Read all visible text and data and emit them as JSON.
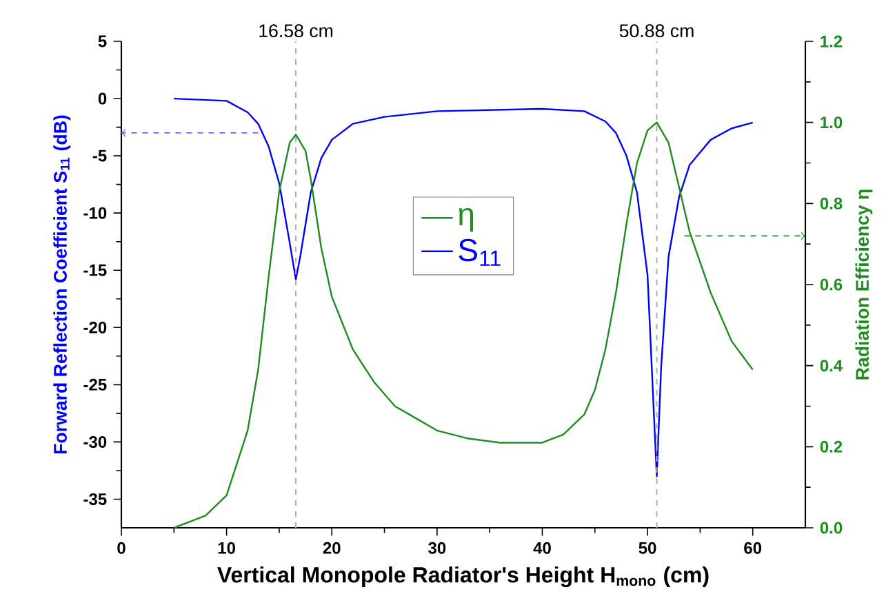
{
  "chart_data": {
    "type": "line",
    "xlabel": "Vertical Monopole Radiator's Height H$_{mono}$ (cm)",
    "ylabel": "Forward Reflection Coefficient S$_{11}$ (dB)",
    "y2label": "Radiation Efficiency η",
    "xlim": [
      0,
      65
    ],
    "xticks": [
      0,
      10,
      20,
      30,
      40,
      50,
      60
    ],
    "ylim": [
      -37.5,
      5
    ],
    "yticks": [
      -35,
      -30,
      -25,
      -20,
      -15,
      -10,
      -5,
      0,
      5
    ],
    "y2lim": [
      0,
      1.2
    ],
    "y2ticks": [
      {
        "value": 0,
        "label": "0.0"
      },
      {
        "value": 0.2,
        "label": "0.2"
      },
      {
        "value": 0.4,
        "label": "0.4"
      },
      {
        "value": 0.6,
        "label": "0.6"
      },
      {
        "value": 0.8,
        "label": "0.8"
      },
      {
        "value": 1,
        "label": "1.0"
      },
      {
        "value": 1.2,
        "label": "1.2"
      }
    ],
    "legend": "center",
    "grid": false,
    "ref_lines": [
      {
        "axis": "x",
        "value": 16.58,
        "label": "16.58 cm",
        "color": "#b0b0b0",
        "line_style": "dashed"
      },
      {
        "axis": "x",
        "value": 50.88,
        "label": "50.88 cm",
        "color": "#b0b0b0",
        "line_style": "dashed"
      }
    ],
    "series": [
      {
        "name": "η",
        "color": "#1e8c1e",
        "axis": "y2",
        "x": [
          5,
          8,
          10,
          12,
          13,
          14,
          15,
          16,
          16.58,
          17.5,
          18,
          19,
          20,
          22,
          24,
          26,
          28,
          30,
          33,
          36,
          38,
          40,
          42,
          44,
          45,
          46,
          47,
          48,
          49,
          50,
          50.88,
          52,
          53,
          54,
          56,
          58,
          60
        ],
        "values": [
          0.0,
          0.03,
          0.08,
          0.24,
          0.39,
          0.62,
          0.83,
          0.95,
          0.97,
          0.93,
          0.86,
          0.69,
          0.57,
          0.44,
          0.36,
          0.3,
          0.27,
          0.24,
          0.22,
          0.21,
          0.21,
          0.21,
          0.23,
          0.28,
          0.34,
          0.44,
          0.58,
          0.75,
          0.9,
          0.98,
          1.0,
          0.95,
          0.84,
          0.73,
          0.58,
          0.46,
          0.39
        ]
      },
      {
        "name": "S$_{11}$",
        "color": "#0000ff",
        "x": [
          5,
          10,
          12,
          13,
          14,
          15,
          16,
          16.58,
          17,
          18,
          19,
          20,
          22,
          25,
          30,
          35,
          40,
          44,
          46,
          47,
          48,
          49,
          50,
          50.5,
          50.88,
          51.3,
          52,
          53,
          54,
          56,
          58,
          60
        ],
        "values": [
          0,
          -0.2,
          -1.2,
          -2.2,
          -4.2,
          -7.4,
          -12.6,
          -15.8,
          -13.8,
          -8.2,
          -5.2,
          -3.6,
          -2.2,
          -1.6,
          -1.1,
          -1.0,
          -0.9,
          -1.1,
          -2.0,
          -3.0,
          -5.0,
          -8.2,
          -15.4,
          -25.4,
          -33.0,
          -23.4,
          -13.8,
          -8.6,
          -5.8,
          -3.6,
          -2.6,
          -2.1
        ]
      }
    ]
  }
}
